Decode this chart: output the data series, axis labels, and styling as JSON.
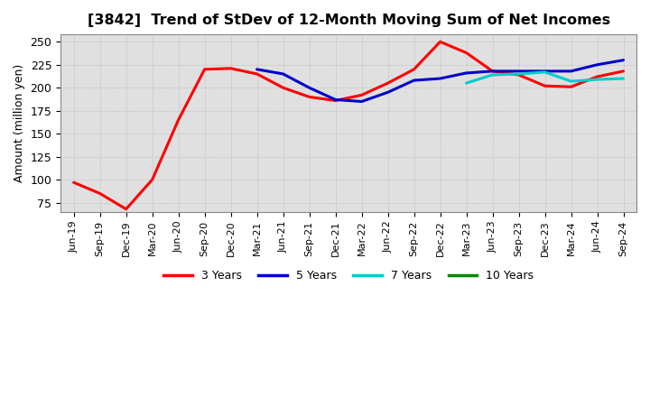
{
  "title": "[3842]  Trend of StDev of 12-Month Moving Sum of Net Incomes",
  "ylabel": "Amount (million yen)",
  "background_color": "#ffffff",
  "grid_color": "#aaaaaa",
  "yticks": [
    75,
    100,
    125,
    150,
    175,
    200,
    225,
    250
  ],
  "ylim": [
    65,
    258
  ],
  "series": {
    "3 Years": {
      "color": "#ff0000",
      "dates": [
        "Jun-19",
        "Sep-19",
        "Dec-19",
        "Mar-20",
        "Jun-20",
        "Sep-20",
        "Dec-20",
        "Mar-21",
        "Jun-21",
        "Sep-21",
        "Dec-21",
        "Mar-22",
        "Jun-22",
        "Sep-22",
        "Dec-22",
        "Mar-23",
        "Jun-23",
        "Sep-23",
        "Dec-23",
        "Mar-24",
        "Jun-24",
        "Sep-24"
      ],
      "values": [
        97,
        85,
        68,
        100,
        165,
        220,
        221,
        215,
        200,
        190,
        186,
        192,
        205,
        220,
        250,
        238,
        218,
        214,
        202,
        201,
        212,
        218
      ]
    },
    "5 Years": {
      "color": "#0000cc",
      "dates": [
        "Mar-21",
        "Jun-21",
        "Sep-21",
        "Dec-21",
        "Mar-22",
        "Jun-22",
        "Sep-22",
        "Dec-22",
        "Mar-23",
        "Jun-23",
        "Sep-23",
        "Dec-23",
        "Mar-24",
        "Jun-24",
        "Sep-24"
      ],
      "values": [
        220,
        215,
        200,
        187,
        185,
        195,
        208,
        210,
        216,
        218,
        218,
        218,
        218,
        225,
        230
      ]
    },
    "7 Years": {
      "color": "#00cccc",
      "dates": [
        "Mar-23",
        "Jun-23",
        "Sep-23",
        "Dec-23",
        "Mar-24",
        "Jun-24",
        "Sep-24"
      ],
      "values": [
        205,
        214,
        215,
        217,
        207,
        209,
        210
      ]
    },
    "10 Years": {
      "color": "#008800",
      "dates": [],
      "values": []
    }
  },
  "legend_labels": [
    "3 Years",
    "5 Years",
    "7 Years",
    "10 Years"
  ],
  "legend_colors": [
    "#ff0000",
    "#0000cc",
    "#00cccc",
    "#008800"
  ],
  "x_tick_labels": [
    "Jun-19",
    "Sep-19",
    "Dec-19",
    "Mar-20",
    "Jun-20",
    "Sep-20",
    "Dec-20",
    "Mar-21",
    "Jun-21",
    "Sep-21",
    "Dec-21",
    "Mar-22",
    "Jun-22",
    "Sep-22",
    "Dec-22",
    "Mar-23",
    "Jun-23",
    "Sep-23",
    "Dec-23",
    "Mar-24",
    "Jun-24",
    "Sep-24"
  ]
}
